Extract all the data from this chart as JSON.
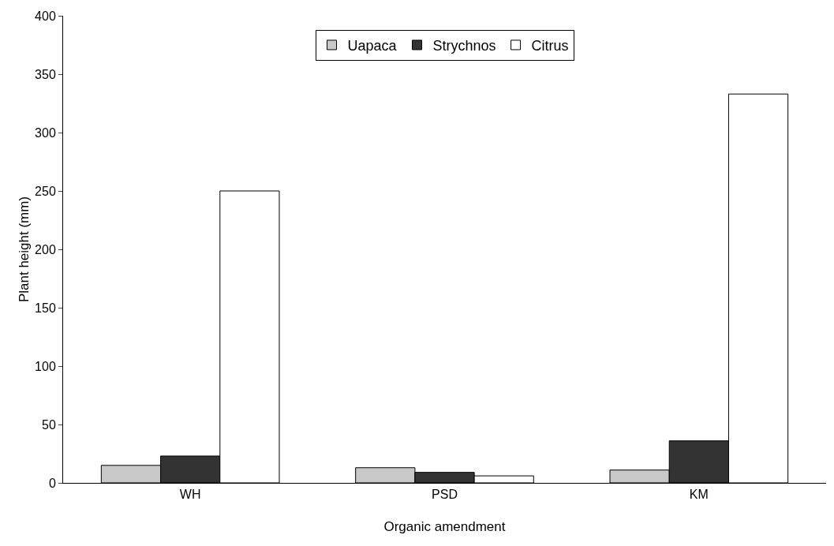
{
  "chart_data": {
    "type": "bar",
    "xlabel": "Organic amendment",
    "ylabel": "Plant height (mm)",
    "categories": [
      "WH",
      "PSD",
      "KM"
    ],
    "series": [
      {
        "name": "Uapaca",
        "color": "#c8c8c8",
        "values": [
          15,
          13,
          11
        ]
      },
      {
        "name": "Strychnos",
        "color": "#333333",
        "values": [
          23,
          9,
          36
        ]
      },
      {
        "name": "Citrus",
        "color": "#ffffff",
        "values": [
          250,
          6,
          333
        ]
      }
    ],
    "ylim": [
      0,
      400
    ],
    "yticks": [
      0,
      50,
      100,
      150,
      200,
      250,
      300,
      350,
      400
    ],
    "grid": false,
    "legend": "top"
  }
}
